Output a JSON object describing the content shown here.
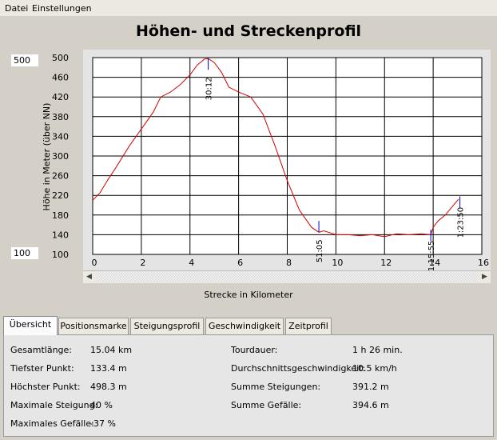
{
  "menu": {
    "items": [
      "Datei",
      "Einstellungen"
    ]
  },
  "title": "Höhen- und Streckenprofil",
  "range_boxes": {
    "max": "500",
    "min": "100"
  },
  "chart_data": {
    "type": "line",
    "title": "Höhen- und Streckenprofil",
    "xlabel": "Strecke in Kilometer",
    "ylabel": "Höhe in Meter (über NN)",
    "xlim": [
      0,
      16
    ],
    "ylim": [
      100,
      500
    ],
    "grid": true,
    "x_ticks": [
      0,
      2,
      4,
      6,
      8,
      10,
      12,
      14,
      16
    ],
    "y_ticks": [
      100,
      140,
      180,
      220,
      260,
      300,
      340,
      380,
      420,
      460,
      500
    ],
    "series": [
      {
        "color": "#d40000",
        "x": [
          0,
          0.3,
          0.6,
          1.0,
          1.5,
          2.0,
          2.5,
          2.8,
          3.2,
          3.6,
          4.0,
          4.3,
          4.6,
          4.75,
          5.0,
          5.3,
          5.6,
          6.0,
          6.5,
          7.0,
          7.5,
          8.0,
          8.5,
          9.0,
          9.3,
          9.5,
          10.0,
          10.5,
          11.0,
          11.5,
          12.0,
          12.5,
          13.0,
          13.5,
          13.9,
          14.0,
          14.2,
          14.5,
          14.8,
          15.04
        ],
        "values": [
          210,
          225,
          250,
          280,
          320,
          355,
          390,
          420,
          430,
          445,
          465,
          485,
          497,
          498,
          490,
          470,
          440,
          430,
          420,
          385,
          320,
          250,
          190,
          155,
          145,
          148,
          140,
          140,
          138,
          140,
          136,
          142,
          140,
          142,
          140,
          155,
          168,
          180,
          198,
          212
        ]
      }
    ],
    "annotations": [
      {
        "label": "30:12",
        "x": 4.75,
        "y": 498
      },
      {
        "label": "51:05",
        "x": 9.3,
        "y": 168
      },
      {
        "label": "1:15:55",
        "x": 13.9,
        "y": 150
      },
      {
        "label": "1:23:50",
        "x": 15.1,
        "y": 218
      }
    ]
  },
  "tabs": [
    {
      "label": "Übersicht",
      "active": true
    },
    {
      "label": "Positionsmarke",
      "active": false
    },
    {
      "label": "Steigungsprofil",
      "active": false
    },
    {
      "label": "Geschwindigkeit",
      "active": false
    },
    {
      "label": "Zeitprofil",
      "active": false
    }
  ],
  "stats_left": [
    {
      "label": "Gesamtlänge:",
      "value": "15.04 km"
    },
    {
      "label": "Tiefster Punkt:",
      "value": "133.4 m"
    },
    {
      "label": "Höchster Punkt:",
      "value": "498.3 m"
    },
    {
      "label": "Maximale Steigung:",
      "value": "40 %"
    },
    {
      "label": "Maximales Gefälle:",
      "value": "-37 %"
    }
  ],
  "stats_right": [
    {
      "label": "Tourdauer:",
      "value": "1 h 26 min."
    },
    {
      "label": "Durchschnittsgeschwindigkeit:",
      "value": "10.5 km/h"
    },
    {
      "label": "Summe Steigungen:",
      "value": "391.2 m"
    },
    {
      "label": "Summe Gefälle:",
      "value": "394.6 m"
    }
  ],
  "colors": {
    "line": "#d40000",
    "marker": "#0000c0",
    "plot_bg": "#ffffff",
    "window_bg": "#d4d0c8"
  }
}
